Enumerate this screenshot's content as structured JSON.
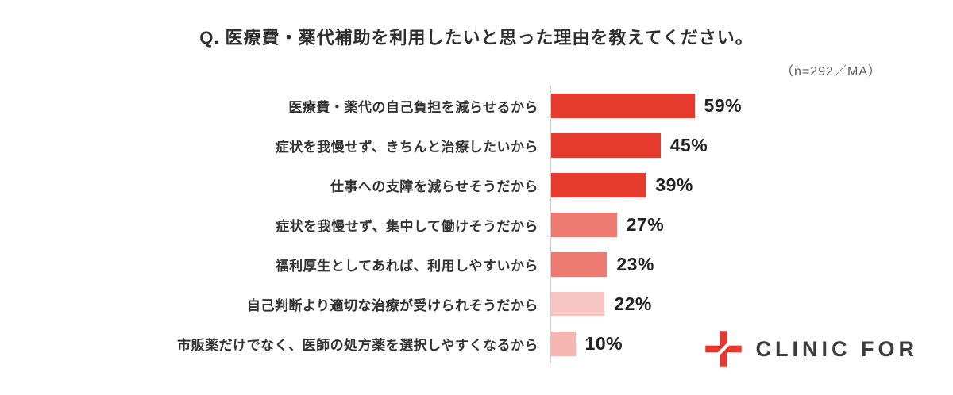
{
  "header": {
    "title": "Q. 医療費・薬代補助を利用したいと思った理由を教えてください。",
    "sample_note": "（n=292／MA）"
  },
  "chart_data": {
    "type": "bar",
    "orientation": "horizontal",
    "title": "Q. 医療費・薬代補助を利用したいと思った理由を教えてください。",
    "sample_size_note": "n=292 / MA",
    "value_suffix": "%",
    "xlim": [
      0,
      100
    ],
    "categories": [
      "医療費・薬代の自己負担を減らせるから",
      "症状を我慢せず、きちんと治療したいから",
      "仕事への支障を減らせそうだから",
      "症状を我慢せず、集中して働けそうだから",
      "福利厚生としてあれば、利用しやすいから",
      "自己判断より適切な治療が受けられそうだから",
      "市販薬だけでなく、医師の処方薬を選択しやすくなるから"
    ],
    "values": [
      59,
      45,
      39,
      27,
      23,
      22,
      10
    ],
    "display_values": [
      "59%",
      "45%",
      "39%",
      "27%",
      "23%",
      "22%",
      "10%"
    ],
    "bar_colors": [
      "#e53a2e",
      "#e53a2e",
      "#e53a2e",
      "#ed7b72",
      "#ed7b72",
      "#f8c6c2",
      "#f5b5b0"
    ],
    "axis_color": "#cccccc",
    "grid": false,
    "legend": "none"
  },
  "logo": {
    "text": "CLINIC FOR",
    "icon": "clinic-for-cross-icon",
    "icon_color": "#e8382f"
  }
}
